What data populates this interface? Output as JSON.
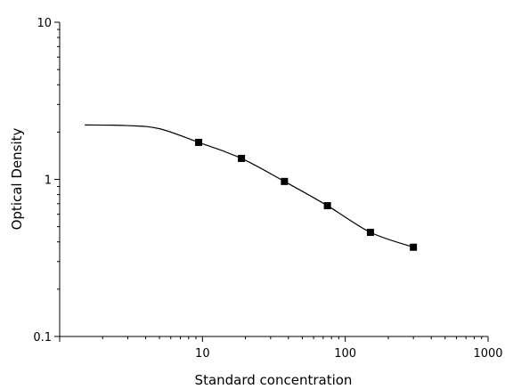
{
  "chart_data": {
    "type": "scatter",
    "xlabel": "Standard concentration",
    "ylabel": "Optical Density",
    "x_scale": "log",
    "y_scale": "log",
    "xlim": [
      1,
      1000
    ],
    "ylim": [
      0.1,
      10
    ],
    "x_tick_labels": [
      "10",
      "100",
      "1000"
    ],
    "y_tick_labels": [
      "0.1",
      "1",
      "10"
    ],
    "grid": false,
    "legend": "none",
    "series": [
      {
        "marker": "square",
        "x": [
          9.4,
          18.75,
          37.5,
          75,
          150,
          300
        ],
        "y": [
          1.72,
          1.36,
          0.97,
          0.68,
          0.46,
          0.37
        ]
      }
    ],
    "fit_curve": {
      "x": [
        1.5,
        3,
        5,
        9.4,
        18.75,
        37.5,
        75,
        150,
        300
      ],
      "y": [
        2.22,
        2.2,
        2.1,
        1.72,
        1.36,
        0.97,
        0.68,
        0.46,
        0.37
      ]
    }
  }
}
